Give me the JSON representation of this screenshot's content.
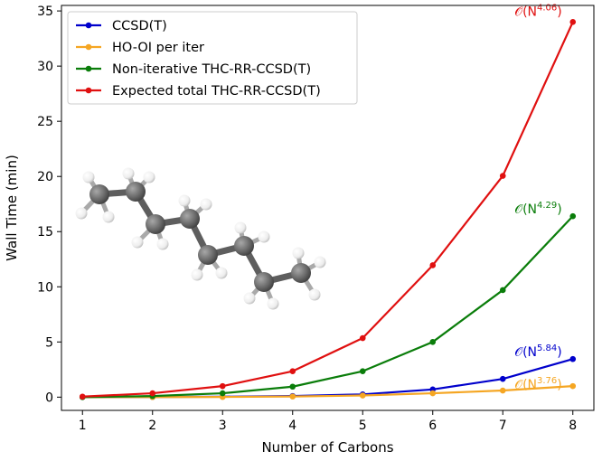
{
  "chart_data": {
    "type": "line",
    "xlabel": "Number of Carbons",
    "ylabel": "Wall Time (min)",
    "xlim": [
      0.7,
      8.3
    ],
    "ylim": [
      -1.2,
      35.5
    ],
    "x": [
      1,
      2,
      3,
      4,
      5,
      6,
      7,
      8
    ],
    "xticks": [
      "1",
      "2",
      "3",
      "4",
      "5",
      "6",
      "7",
      "8"
    ],
    "yticks": [
      "0",
      "5",
      "10",
      "15",
      "20",
      "25",
      "30",
      "35"
    ],
    "grid": false,
    "legend_position": "top-left",
    "series": [
      {
        "name": "CCSD(T)",
        "color": "#0000cc",
        "values": [
          0.0,
          0.02,
          0.04,
          0.1,
          0.25,
          0.7,
          1.65,
          3.45
        ]
      },
      {
        "name": "HO-OI per iter",
        "color": "#f5a623",
        "values": [
          0.0,
          0.01,
          0.02,
          0.06,
          0.15,
          0.35,
          0.6,
          1.0
        ]
      },
      {
        "name": "Non-iterative THC-RR-CCSD(T)",
        "color": "#0a7d0a",
        "values": [
          0.0,
          0.1,
          0.35,
          0.95,
          2.35,
          5.0,
          9.7,
          16.4
        ]
      },
      {
        "name": "Expected total THC-RR-CCSD(T)",
        "color": "#e01010",
        "values": [
          0.05,
          0.35,
          1.0,
          2.35,
          5.35,
          11.95,
          20.05,
          34.0
        ]
      }
    ],
    "annotations": [
      {
        "prefix": "𝒪(N",
        "exponent": "4.06",
        "suffix": ")",
        "color": "#e01010",
        "x": 8,
        "y": 34.0
      },
      {
        "prefix": "𝒪(N",
        "exponent": "4.29",
        "suffix": ")",
        "color": "#0a7d0a",
        "x": 8,
        "y": 16.4
      },
      {
        "prefix": "𝒪(N",
        "exponent": "5.84",
        "suffix": ")",
        "color": "#0000cc",
        "x": 8,
        "y": 3.45
      },
      {
        "prefix": "𝒪(N",
        "exponent": "3.76",
        "suffix": ")",
        "color": "#f5a623",
        "x": 8,
        "y": 1.0
      }
    ]
  },
  "inset": {
    "molecule": "octane ball-and-stick model",
    "carbon_color": "#6b6b6b",
    "hydrogen_color": "#f2f2f2"
  }
}
